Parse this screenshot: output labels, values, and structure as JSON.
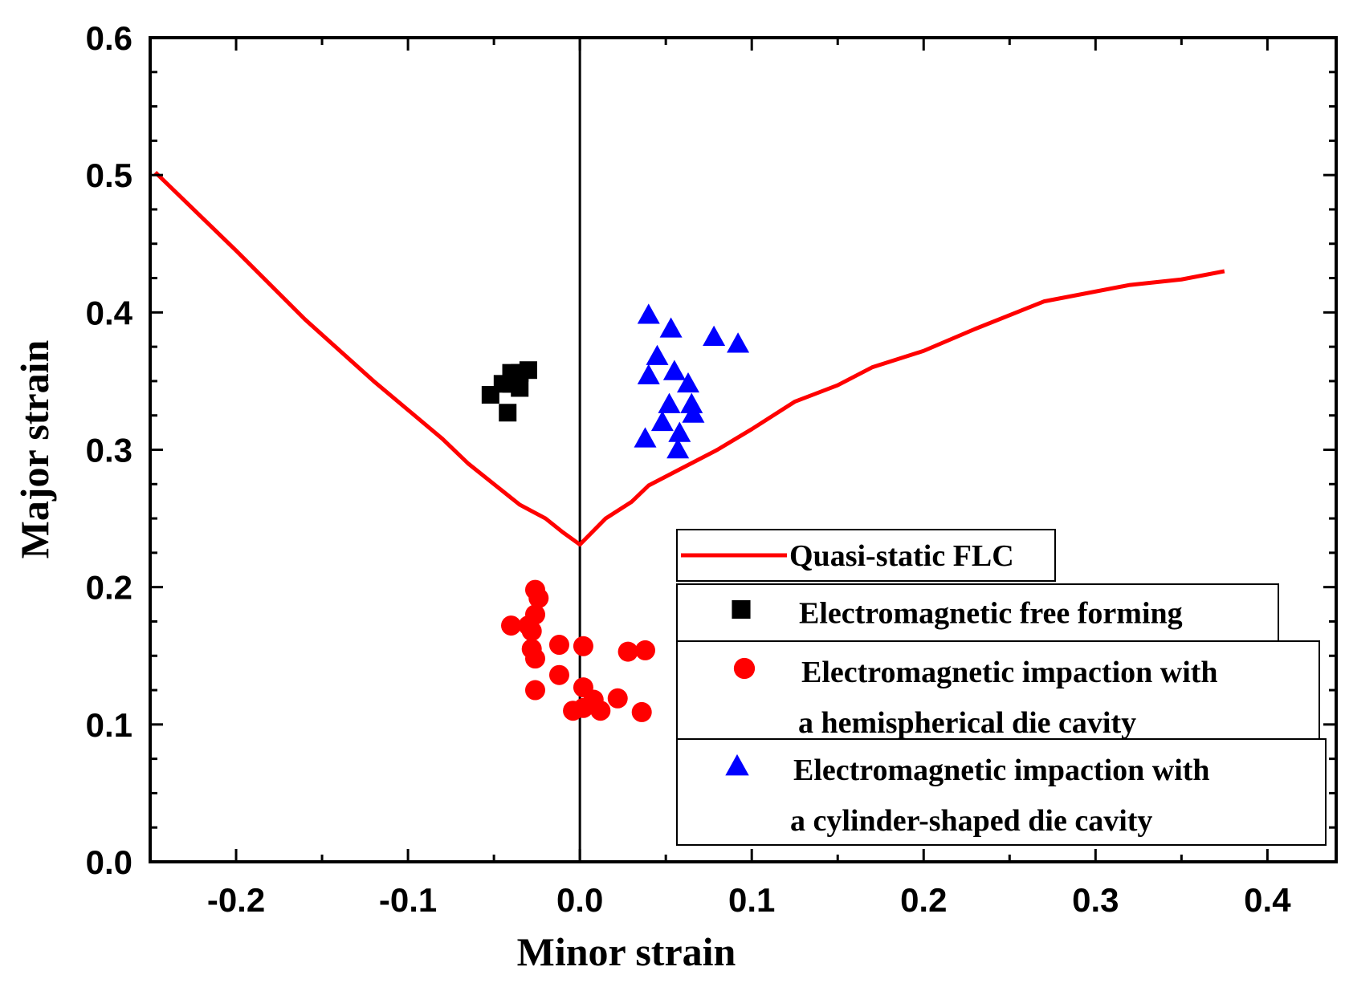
{
  "chart_data": {
    "type": "scatter",
    "xlabel": "Minor strain",
    "ylabel": "Major strain",
    "xlim": [
      -0.25,
      0.44
    ],
    "ylim": [
      0.0,
      0.6
    ],
    "x_ticks": [
      -0.2,
      -0.1,
      0.0,
      0.1,
      0.2,
      0.3,
      0.4
    ],
    "x_tick_labels": [
      "-0.2",
      "-0.1",
      "0.0",
      "0.1",
      "0.2",
      "0.3",
      "0.4"
    ],
    "y_ticks": [
      0.0,
      0.1,
      0.2,
      0.3,
      0.4,
      0.5,
      0.6
    ],
    "y_tick_labels": [
      "0.0",
      "0.1",
      "0.2",
      "0.3",
      "0.4",
      "0.5",
      "0.6"
    ],
    "reference_line_x": 0.0,
    "series": [
      {
        "name": "Quasi-static FLC",
        "kind": "line",
        "color": "#ff0000",
        "x": [
          -0.247,
          -0.2,
          -0.16,
          -0.12,
          -0.08,
          -0.065,
          -0.05,
          -0.035,
          -0.02,
          -0.01,
          0.0,
          0.015,
          0.03,
          0.04,
          0.06,
          0.08,
          0.1,
          0.125,
          0.15,
          0.17,
          0.2,
          0.23,
          0.27,
          0.32,
          0.35,
          0.375
        ],
        "y": [
          0.502,
          0.445,
          0.395,
          0.35,
          0.308,
          0.29,
          0.275,
          0.26,
          0.25,
          0.24,
          0.231,
          0.25,
          0.262,
          0.274,
          0.287,
          0.3,
          0.315,
          0.335,
          0.347,
          0.36,
          0.372,
          0.388,
          0.408,
          0.42,
          0.424,
          0.43
        ]
      },
      {
        "name": "Electromagnetic  free forming",
        "kind": "scatter",
        "marker": "square",
        "color": "#000000",
        "x": [
          -0.052,
          -0.045,
          -0.04,
          -0.04,
          -0.035,
          -0.035,
          -0.03,
          -0.038,
          -0.042
        ],
        "y": [
          0.34,
          0.348,
          0.356,
          0.348,
          0.356,
          0.345,
          0.358,
          0.352,
          0.327
        ]
      },
      {
        "name": "Electromagnetic impaction with a  hemispherical  die cavity",
        "kind": "scatter",
        "marker": "circle",
        "color": "#ff0000",
        "x": [
          -0.04,
          -0.03,
          -0.026,
          -0.024,
          -0.028,
          -0.026,
          -0.028,
          -0.026,
          -0.012,
          -0.012,
          -0.026,
          0.002,
          0.002,
          0.008,
          0.012,
          -0.004,
          0.002,
          0.022,
          0.028,
          0.038,
          0.036
        ],
        "y": [
          0.172,
          0.172,
          0.198,
          0.192,
          0.168,
          0.18,
          0.155,
          0.148,
          0.158,
          0.136,
          0.125,
          0.157,
          0.127,
          0.118,
          0.11,
          0.11,
          0.112,
          0.119,
          0.153,
          0.154,
          0.109
        ]
      },
      {
        "name": "Electromagnetic impaction with a cylinder-shaped  die cavity",
        "kind": "scatter",
        "marker": "triangle",
        "color": "#0000ff",
        "x": [
          0.04,
          0.053,
          0.078,
          0.092,
          0.045,
          0.04,
          0.055,
          0.063,
          0.052,
          0.065,
          0.048,
          0.066,
          0.038,
          0.058,
          0.057
        ],
        "y": [
          0.398,
          0.388,
          0.382,
          0.377,
          0.368,
          0.354,
          0.357,
          0.348,
          0.333,
          0.333,
          0.32,
          0.326,
          0.308,
          0.312,
          0.3
        ]
      }
    ],
    "legend": {
      "position": "lower-right",
      "entries": [
        {
          "marker": "line",
          "color": "#ff0000",
          "lines": [
            "Quasi-static FLC"
          ]
        },
        {
          "marker": "square",
          "color": "#000000",
          "lines": [
            "Electromagnetic  free forming"
          ]
        },
        {
          "marker": "circle",
          "color": "#ff0000",
          "lines": [
            "Electromagnetic impaction with",
            "a  hemispherical  die cavity"
          ]
        },
        {
          "marker": "triangle",
          "color": "#0000ff",
          "lines": [
            "Electromagnetic impaction with",
            "a cylinder-shaped  die cavity"
          ]
        }
      ]
    }
  }
}
